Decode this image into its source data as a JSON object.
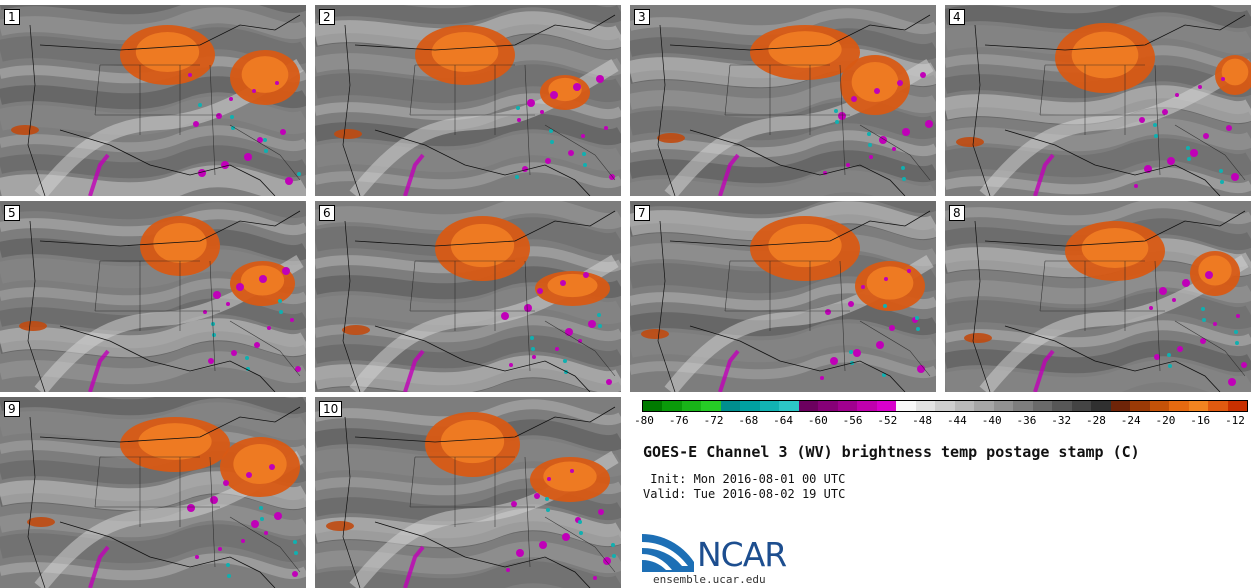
{
  "panels": [
    {
      "label": "1"
    },
    {
      "label": "2"
    },
    {
      "label": "3"
    },
    {
      "label": "4"
    },
    {
      "label": "5"
    },
    {
      "label": "6"
    },
    {
      "label": "7"
    },
    {
      "label": "8"
    },
    {
      "label": "9"
    },
    {
      "label": "10"
    }
  ],
  "colorbar": {
    "ticks": [
      "-80",
      "-76",
      "-72",
      "-68",
      "-64",
      "-60",
      "-56",
      "-52",
      "-48",
      "-44",
      "-40",
      "-36",
      "-32",
      "-28",
      "-24",
      "-20",
      "-16",
      "-12"
    ],
    "colors": [
      "#007a00",
      "#0a9a0a",
      "#18b418",
      "#26cc26",
      "#008e8e",
      "#00a0a0",
      "#12b3b3",
      "#2cc6c6",
      "#6c005f",
      "#860077",
      "#a0008f",
      "#bf00ad",
      "#d800cc",
      "#f7f7f7",
      "#e2e2e2",
      "#cecece",
      "#bababa",
      "#a6a6a6",
      "#929292",
      "#7e7e7e",
      "#6a6a6a",
      "#575757",
      "#444444",
      "#303030",
      "#6e2408",
      "#9a3a06",
      "#c45208",
      "#e66a10",
      "#f28420",
      "#e05a10",
      "#c83000"
    ]
  },
  "title": "GOES-E Channel 3 (WV) brightness temp postage stamp (C)",
  "init_line": " Init: Mon 2016-08-01 00 UTC",
  "valid_line": "Valid: Tue 2016-08-02 19 UTC",
  "logo": {
    "text": "NCAR",
    "url": "ensemble.ucar.edu",
    "color": "#1d4e8f"
  }
}
